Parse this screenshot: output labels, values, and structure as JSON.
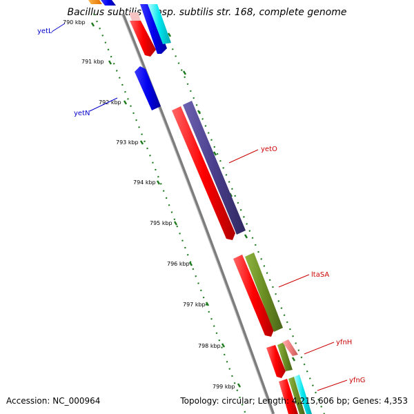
{
  "title": "Bacillus subtilis subsp. subtilis str. 168, complete genome",
  "footer": {
    "accession": "Accession: NC_000964",
    "summary": "Topology: circular; Length: 4,215,606 bp; Genes: 4,353"
  },
  "ticks": [
    {
      "label": "790 kbp"
    },
    {
      "label": "791 kbp"
    },
    {
      "label": "792 kbp"
    },
    {
      "label": "793 kbp"
    },
    {
      "label": "794 kbp"
    },
    {
      "label": "795 kbp"
    },
    {
      "label": "796 kbp"
    },
    {
      "label": "797 kbp"
    },
    {
      "label": "798 kbp"
    },
    {
      "label": "799 kbp"
    }
  ],
  "genes": [
    {
      "name": "yetL",
      "color": "#0000cc"
    },
    {
      "name": "yetN",
      "color": "#0000cc"
    },
    {
      "name": "yetO",
      "color": "#cc0000"
    },
    {
      "name": "ltaSA",
      "color": "#cc0000"
    },
    {
      "name": "yfnH",
      "color": "#cc0000"
    },
    {
      "name": "yfnG",
      "color": "#cc0000"
    }
  ],
  "colors": {
    "backbone": "#8a8a8a",
    "tick_dots": "#1e7a1e",
    "red_feature": "#ff0000",
    "blue_feature": "#0000ee",
    "purple_feature": "#4a3f8c",
    "olive_feature": "#6b8e23",
    "cyan_feature": "#00e5ee",
    "pink_feature": "#f08080",
    "orange_feature": "#ff8c00"
  }
}
